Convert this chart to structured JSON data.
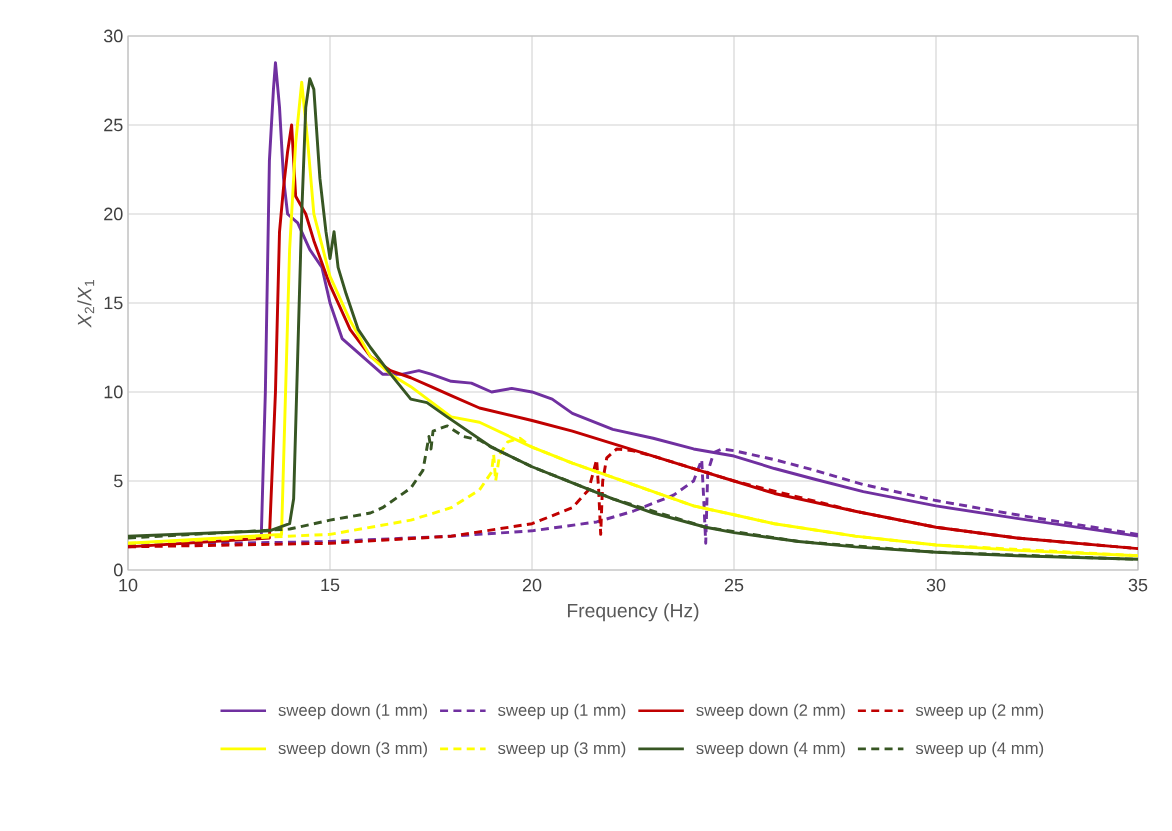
{
  "chart_data": {
    "type": "line",
    "xlabel": "Frequency (Hz)",
    "ylabel": "*X*$_{2}$/*X*$_{1}$",
    "xlim": [
      10,
      35
    ],
    "ylim": [
      0,
      30
    ],
    "xticks": [
      10,
      15,
      20,
      25,
      30,
      35
    ],
    "yticks": [
      0,
      5,
      10,
      15,
      20,
      25,
      30
    ],
    "grid": true,
    "legend": "bottom",
    "marker": "none",
    "series": [
      {
        "name": "sweep down (1 mm)",
        "color": "#7030a0",
        "line_style": "solid",
        "x": [
          13.3,
          13.4,
          13.5,
          13.6,
          13.65,
          13.75,
          13.85,
          13.95,
          14.2,
          14.5,
          14.8,
          15.0,
          15.3,
          15.8,
          16.3,
          16.8,
          17.2,
          17.5,
          18,
          18.5,
          19,
          19.5,
          20,
          20.5,
          21,
          22,
          23,
          24,
          25,
          26,
          27,
          28.2,
          30,
          32,
          35
        ],
        "values": [
          2.0,
          10,
          23,
          27,
          28.5,
          26,
          22,
          20,
          19.5,
          18,
          17,
          15,
          13,
          12,
          11,
          11,
          11.2,
          11,
          10.6,
          10.5,
          10,
          10.2,
          10,
          9.6,
          8.8,
          7.9,
          7.4,
          6.8,
          6.4,
          5.7,
          5.1,
          4.4,
          3.6,
          2.9,
          1.9
        ]
      },
      {
        "name": "sweep up (1 mm)",
        "color": "#7030a0",
        "line_style": "dashed",
        "x": [
          10,
          15,
          18,
          20,
          21.6,
          22.5,
          23.5,
          24,
          24.2,
          24.25,
          24.3,
          24.35,
          24.5,
          24.7,
          25,
          26,
          27,
          28.2,
          30,
          32,
          35
        ],
        "values": [
          1.4,
          1.6,
          1.9,
          2.2,
          2.7,
          3.3,
          4.2,
          5.0,
          6.2,
          4.0,
          1.5,
          5.5,
          6.6,
          6.8,
          6.7,
          6.2,
          5.6,
          4.8,
          3.9,
          3.1,
          2.0
        ]
      },
      {
        "name": "sweep down (2 mm)",
        "color": "#c00000",
        "line_style": "solid",
        "x": [
          10,
          13.5,
          13.65,
          13.75,
          13.85,
          13.95,
          14.05,
          14.15,
          14.4,
          14.6,
          15,
          15.5,
          16,
          16.5,
          17,
          17.5,
          18,
          18.7,
          20,
          21,
          22,
          23,
          24,
          25,
          26,
          28,
          30,
          32,
          35
        ],
        "values": [
          1.3,
          1.8,
          10,
          19,
          21.5,
          23.5,
          25,
          21,
          20,
          18.5,
          16,
          13.5,
          12,
          11.2,
          10.8,
          10.3,
          9.8,
          9.1,
          8.4,
          7.8,
          7.1,
          6.4,
          5.7,
          5.0,
          4.3,
          3.3,
          2.4,
          1.8,
          1.2
        ]
      },
      {
        "name": "sweep up (2 mm)",
        "color": "#c00000",
        "line_style": "dashed",
        "x": [
          10,
          15,
          18,
          20,
          21,
          21.4,
          21.6,
          21.65,
          21.7,
          21.75,
          21.85,
          22.1,
          22.5,
          23,
          24,
          25,
          28,
          30,
          32,
          35
        ],
        "values": [
          1.3,
          1.5,
          1.9,
          2.6,
          3.5,
          4.5,
          6.2,
          4.5,
          2.0,
          5.0,
          6.3,
          6.8,
          6.7,
          6.4,
          5.7,
          5.0,
          3.3,
          2.4,
          1.8,
          1.2
        ]
      },
      {
        "name": "sweep down (3 mm)",
        "color": "#ffff00",
        "line_style": "solid",
        "x": [
          10,
          13.8,
          13.9,
          14.0,
          14.15,
          14.3,
          14.45,
          14.6,
          15,
          15.5,
          16,
          16.5,
          17,
          18,
          18.7,
          20,
          21,
          22,
          23,
          24,
          25,
          26,
          28,
          30,
          32,
          35
        ],
        "values": [
          1.5,
          2.0,
          10,
          18,
          24,
          27.4,
          24,
          20,
          16.5,
          14,
          12,
          11,
          10.3,
          8.6,
          8.3,
          6.9,
          6.0,
          5.2,
          4.4,
          3.6,
          3.1,
          2.6,
          1.9,
          1.4,
          1.1,
          0.8
        ]
      },
      {
        "name": "sweep up (3 mm)",
        "color": "#ffff00",
        "line_style": "dashed",
        "x": [
          10,
          15,
          17,
          18,
          18.7,
          19.0,
          19.05,
          19.1,
          19.2,
          19.4,
          19.7,
          20,
          21,
          22,
          24,
          26,
          28,
          30,
          35
        ],
        "values": [
          1.5,
          2.0,
          2.8,
          3.5,
          4.5,
          5.5,
          6.5,
          5.0,
          6.5,
          7.2,
          7.4,
          6.9,
          6.0,
          5.2,
          3.6,
          2.6,
          1.9,
          1.4,
          0.8
        ]
      },
      {
        "name": "sweep down (4 mm)",
        "color": "#375623",
        "line_style": "solid",
        "x": [
          10,
          13.5,
          14.0,
          14.1,
          14.2,
          14.3,
          14.4,
          14.5,
          14.6,
          14.75,
          14.9,
          15.0,
          15.1,
          15.2,
          15.4,
          15.7,
          16,
          16.5,
          17,
          17.4,
          17.9,
          19,
          20,
          21,
          22,
          23,
          24.3,
          25,
          26.6,
          28,
          30,
          32,
          35
        ],
        "values": [
          1.9,
          2.2,
          2.6,
          4,
          12,
          20,
          26,
          27.6,
          27,
          22,
          19,
          17.5,
          19,
          17,
          15.5,
          13.5,
          12.5,
          11.0,
          9.6,
          9.4,
          8.6,
          6.9,
          5.8,
          4.9,
          4.0,
          3.2,
          2.4,
          2.1,
          1.6,
          1.3,
          1.0,
          0.8,
          0.6
        ]
      },
      {
        "name": "sweep up (4 mm)",
        "color": "#375623",
        "line_style": "dashed",
        "x": [
          10,
          14,
          15,
          16,
          16.3,
          17,
          17.3,
          17.45,
          17.5,
          17.55,
          17.9,
          18.3,
          18.7,
          19,
          20,
          22,
          24.3,
          26.6,
          30,
          35
        ],
        "values": [
          1.8,
          2.3,
          2.8,
          3.2,
          3.5,
          4.6,
          5.6,
          7.5,
          6.8,
          7.8,
          8.1,
          7.5,
          7.3,
          6.9,
          5.8,
          4.0,
          2.4,
          1.6,
          1.0,
          0.6
        ]
      }
    ]
  }
}
